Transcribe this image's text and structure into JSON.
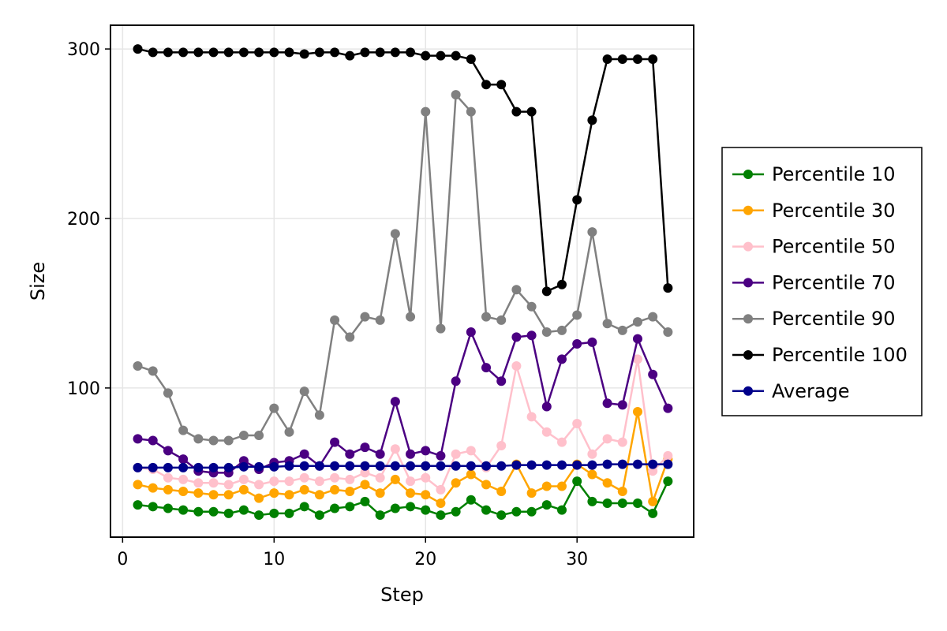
{
  "chart_data": {
    "type": "line",
    "title": "",
    "xlabel": "Step",
    "ylabel": "Size",
    "xlim": [
      -0.8,
      37.7
    ],
    "ylim": [
      12,
      314
    ],
    "xticks": [
      0,
      10,
      20,
      30
    ],
    "yticks": [
      100,
      200,
      300
    ],
    "grid": true,
    "legend_position": "right",
    "x": [
      1,
      2,
      3,
      4,
      5,
      6,
      7,
      8,
      9,
      10,
      11,
      12,
      13,
      14,
      15,
      16,
      17,
      18,
      19,
      20,
      21,
      22,
      23,
      24,
      25,
      26,
      27,
      28,
      29,
      30,
      31,
      32,
      33,
      34,
      35,
      36
    ],
    "series": [
      {
        "name": "Percentile 10",
        "color": "#008000",
        "values": [
          31,
          30,
          29,
          28,
          27,
          27,
          26,
          28,
          25,
          26,
          26,
          30,
          25,
          29,
          30,
          33,
          25,
          29,
          30,
          28,
          25,
          27,
          34,
          28,
          25,
          27,
          27,
          31,
          28,
          45,
          33,
          32,
          32,
          32,
          26,
          45
        ]
      },
      {
        "name": "Percentile 30",
        "color": "#ffa500",
        "values": [
          43,
          41,
          40,
          39,
          38,
          37,
          37,
          40,
          35,
          38,
          37,
          40,
          37,
          40,
          39,
          43,
          38,
          46,
          38,
          37,
          32,
          44,
          49,
          43,
          39,
          55,
          38,
          42,
          42,
          55,
          49,
          44,
          39,
          86,
          33,
          58
        ]
      },
      {
        "name": "Percentile 50",
        "color": "#ffc0cb",
        "values": [
          53,
          52,
          47,
          46,
          44,
          44,
          43,
          46,
          43,
          45,
          45,
          47,
          45,
          47,
          46,
          50,
          47,
          64,
          45,
          47,
          40,
          61,
          63,
          53,
          66,
          113,
          83,
          74,
          68,
          79,
          61,
          70,
          68,
          117,
          51,
          60
        ]
      },
      {
        "name": "Percentile 70",
        "color": "#4b0082",
        "values": [
          70,
          69,
          63,
          58,
          51,
          50,
          50,
          57,
          52,
          56,
          57,
          61,
          54,
          68,
          61,
          65,
          61,
          92,
          61,
          63,
          60,
          104,
          133,
          112,
          104,
          130,
          131,
          89,
          117,
          126,
          127,
          91,
          90,
          129,
          108,
          88
        ]
      },
      {
        "name": "Percentile 90",
        "color": "#808080",
        "values": [
          113,
          110,
          97,
          75,
          70,
          69,
          69,
          72,
          72,
          88,
          74,
          98,
          84,
          140,
          130,
          142,
          140,
          191,
          142,
          263,
          135,
          273,
          263,
          142,
          140,
          158,
          148,
          133,
          134,
          143,
          192,
          138,
          134,
          139,
          142,
          133
        ]
      },
      {
        "name": "Percentile 100",
        "color": "#000000",
        "values": [
          300,
          298,
          298,
          298,
          298,
          298,
          298,
          298,
          298,
          298,
          298,
          297,
          298,
          298,
          296,
          298,
          298,
          298,
          298,
          296,
          296,
          296,
          294,
          279,
          279,
          263,
          263,
          157,
          161,
          211,
          258,
          294,
          294,
          294,
          294,
          159
        ]
      },
      {
        "name": "Average",
        "color": "#00008b",
        "values": [
          53,
          53,
          53,
          53,
          53,
          53,
          53,
          53.5,
          53.5,
          53.5,
          54,
          54,
          54,
          54,
          54,
          54,
          54,
          54,
          54,
          54,
          54,
          54,
          54,
          54,
          54,
          54.5,
          54.5,
          54.5,
          54.5,
          54.5,
          54.5,
          55,
          55,
          55,
          55,
          55
        ]
      }
    ]
  }
}
